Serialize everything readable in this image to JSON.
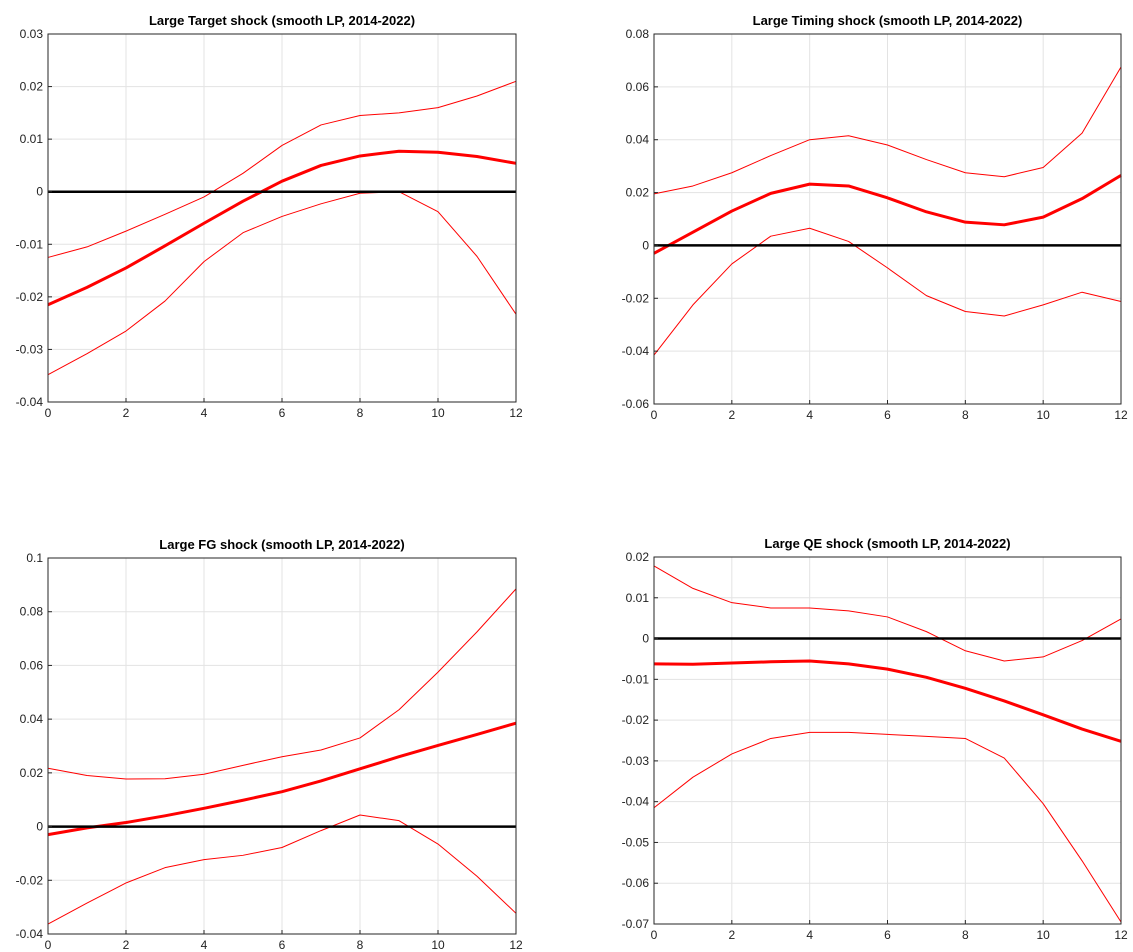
{
  "chart_data": [
    {
      "type": "line",
      "title": "Large Target shock (smooth LP, 2014-2022)",
      "x": [
        0,
        1,
        2,
        3,
        4,
        5,
        6,
        7,
        8,
        9,
        10,
        11,
        12
      ],
      "xlim": [
        0,
        12
      ],
      "xticks": [
        0,
        2,
        4,
        6,
        8,
        10,
        12
      ],
      "ylim": [
        -0.04,
        0.03
      ],
      "yticks": [
        -0.04,
        -0.03,
        -0.02,
        -0.01,
        0,
        0.01,
        0.02,
        0.03
      ],
      "ytick_labels": [
        "-0.04",
        "-0.03",
        "-0.02",
        "-0.01",
        "0",
        "0.01",
        "0.02",
        "0.03"
      ],
      "grid": true,
      "zero_line": true,
      "series": [
        {
          "role": "upper",
          "color": "#ff0000",
          "values": [
            -0.0125,
            -0.0105,
            -0.0075,
            -0.0043,
            -0.001,
            0.0035,
            0.0088,
            0.0127,
            0.0145,
            0.015,
            0.016,
            0.0182,
            0.021
          ]
        },
        {
          "role": "estimate",
          "color": "#ff0000",
          "values": [
            -0.0215,
            -0.0182,
            -0.0145,
            -0.0103,
            -0.006,
            -0.0018,
            0.002,
            0.005,
            0.0068,
            0.0077,
            0.0075,
            0.0067,
            0.0054
          ]
        },
        {
          "role": "lower",
          "color": "#ff0000",
          "values": [
            -0.0348,
            -0.0308,
            -0.0265,
            -0.0208,
            -0.0133,
            -0.0078,
            -0.0047,
            -0.0023,
            -0.0003,
            0.0,
            -0.0038,
            -0.0123,
            -0.0233
          ]
        }
      ]
    },
    {
      "type": "line",
      "title": "Large Timing shock (smooth LP, 2014-2022)",
      "x": [
        0,
        1,
        2,
        3,
        4,
        5,
        6,
        7,
        8,
        9,
        10,
        11,
        12
      ],
      "xlim": [
        0,
        12
      ],
      "xticks": [
        0,
        2,
        4,
        6,
        8,
        10,
        12
      ],
      "ylim": [
        -0.06,
        0.08
      ],
      "yticks": [
        -0.06,
        -0.04,
        -0.02,
        0,
        0.02,
        0.04,
        0.06,
        0.08
      ],
      "ytick_labels": [
        "-0.06",
        "-0.04",
        "-0.02",
        "0",
        "0.02",
        "0.04",
        "0.06",
        "0.08"
      ],
      "grid": true,
      "zero_line": true,
      "series": [
        {
          "role": "upper",
          "color": "#ff0000",
          "values": [
            0.0195,
            0.0225,
            0.0275,
            0.034,
            0.04,
            0.0415,
            0.038,
            0.0325,
            0.0275,
            0.026,
            0.0295,
            0.0425,
            0.0675
          ]
        },
        {
          "role": "estimate",
          "color": "#ff0000",
          "values": [
            -0.003,
            0.005,
            0.013,
            0.0197,
            0.0232,
            0.0225,
            0.018,
            0.0127,
            0.0088,
            0.0078,
            0.0107,
            0.0177,
            0.0265
          ]
        },
        {
          "role": "lower",
          "color": "#ff0000",
          "values": [
            -0.0415,
            -0.0225,
            -0.007,
            0.0035,
            0.0065,
            0.0015,
            -0.0085,
            -0.019,
            -0.025,
            -0.0267,
            -0.0225,
            -0.0177,
            -0.0212
          ]
        }
      ]
    },
    {
      "type": "line",
      "title": "Large FG shock (smooth LP, 2014-2022)",
      "x": [
        0,
        1,
        2,
        3,
        4,
        5,
        6,
        7,
        8,
        9,
        10,
        11,
        12
      ],
      "xlim": [
        0,
        12
      ],
      "xticks": [
        0,
        2,
        4,
        6,
        8,
        10,
        12
      ],
      "ylim": [
        -0.04,
        0.1
      ],
      "yticks": [
        -0.04,
        -0.02,
        0,
        0.02,
        0.04,
        0.06,
        0.08,
        0.1
      ],
      "ytick_labels": [
        "-0.04",
        "-0.02",
        "0",
        "0.02",
        "0.04",
        "0.06",
        "0.08",
        "0.1"
      ],
      "grid": true,
      "zero_line": true,
      "series": [
        {
          "role": "upper",
          "color": "#ff0000",
          "values": [
            0.0217,
            0.019,
            0.0177,
            0.0178,
            0.0195,
            0.0228,
            0.026,
            0.0285,
            0.033,
            0.0435,
            0.0575,
            0.0725,
            0.0885
          ]
        },
        {
          "role": "estimate",
          "color": "#ff0000",
          "values": [
            -0.003,
            -0.0005,
            0.0015,
            0.004,
            0.0068,
            0.0098,
            0.013,
            0.017,
            0.0215,
            0.026,
            0.0302,
            0.0343,
            0.0385
          ]
        },
        {
          "role": "lower",
          "color": "#ff0000",
          "values": [
            -0.0363,
            -0.0285,
            -0.021,
            -0.0153,
            -0.0123,
            -0.0107,
            -0.0078,
            -0.0015,
            0.0043,
            0.0022,
            -0.0065,
            -0.0185,
            -0.0323
          ]
        }
      ]
    },
    {
      "type": "line",
      "title": "Large QE shock (smooth LP, 2014-2022)",
      "x": [
        0,
        1,
        2,
        3,
        4,
        5,
        6,
        7,
        8,
        9,
        10,
        11,
        12
      ],
      "xlim": [
        0,
        12
      ],
      "xticks": [
        0,
        2,
        4,
        6,
        8,
        10,
        12
      ],
      "ylim": [
        -0.07,
        0.02
      ],
      "yticks": [
        -0.07,
        -0.06,
        -0.05,
        -0.04,
        -0.03,
        -0.02,
        -0.01,
        0,
        0.01,
        0.02
      ],
      "ytick_labels": [
        "-0.07",
        "-0.06",
        "-0.05",
        "-0.04",
        "-0.03",
        "-0.02",
        "-0.01",
        "0",
        "0.01",
        "0.02"
      ],
      "grid": true,
      "zero_line": true,
      "series": [
        {
          "role": "upper",
          "color": "#ff0000",
          "values": [
            0.0178,
            0.0123,
            0.0088,
            0.0075,
            0.0075,
            0.0068,
            0.0053,
            0.0017,
            -0.003,
            -0.0055,
            -0.0045,
            -0.0005,
            0.0048
          ]
        },
        {
          "role": "estimate",
          "color": "#ff0000",
          "values": [
            -0.0062,
            -0.0063,
            -0.006,
            -0.0057,
            -0.0055,
            -0.0062,
            -0.0075,
            -0.0095,
            -0.0122,
            -0.0153,
            -0.0187,
            -0.0222,
            -0.0252
          ]
        },
        {
          "role": "lower",
          "color": "#ff0000",
          "values": [
            -0.0415,
            -0.034,
            -0.0283,
            -0.0245,
            -0.023,
            -0.023,
            -0.0235,
            -0.024,
            -0.0245,
            -0.0293,
            -0.0405,
            -0.0545,
            -0.0695
          ]
        }
      ]
    }
  ]
}
